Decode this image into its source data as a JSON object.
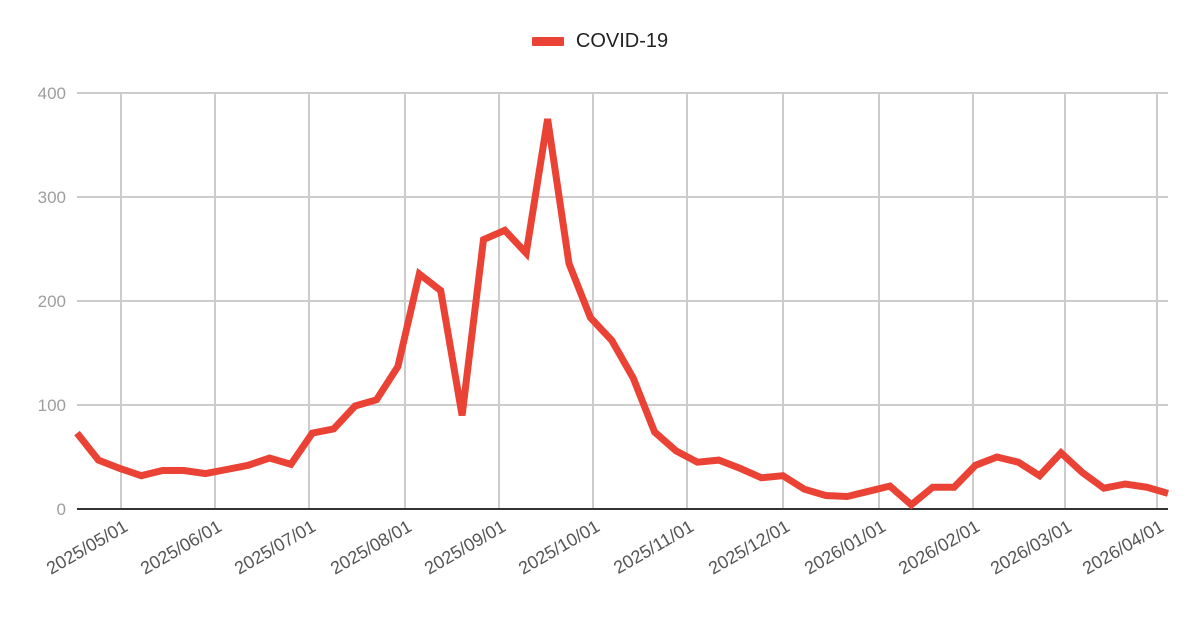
{
  "chart_data": {
    "type": "line",
    "title": "",
    "xlabel": "",
    "ylabel": "",
    "ylim": [
      0,
      400
    ],
    "yticks": [
      0,
      100,
      200,
      300,
      400
    ],
    "grid": true,
    "legend_position": "top",
    "xtick_labels": [
      "2025/05/01",
      "2025/06/01",
      "2025/07/01",
      "2025/08/01",
      "2025/09/01",
      "2025/10/01",
      "2025/11/01",
      "2025/12/01",
      "2026/01/01",
      "2026/02/01",
      "2026/03/01",
      "2026/04/01"
    ],
    "series": [
      {
        "name": "COVID-19",
        "color": "#ea4335",
        "values": [
          73,
          47,
          39,
          32,
          37,
          37,
          34,
          38,
          42,
          49,
          43,
          73,
          77,
          99,
          105,
          137,
          226,
          210,
          90,
          259,
          268,
          246,
          375,
          236,
          184,
          162,
          126,
          74,
          56,
          45,
          47,
          39,
          30,
          32,
          19,
          13,
          12,
          17,
          22,
          4,
          21,
          21,
          42,
          50,
          45,
          32,
          54,
          35,
          20,
          24,
          21,
          15
        ]
      }
    ]
  },
  "legend": {
    "label": "COVID-19",
    "color": "#ea4335"
  }
}
